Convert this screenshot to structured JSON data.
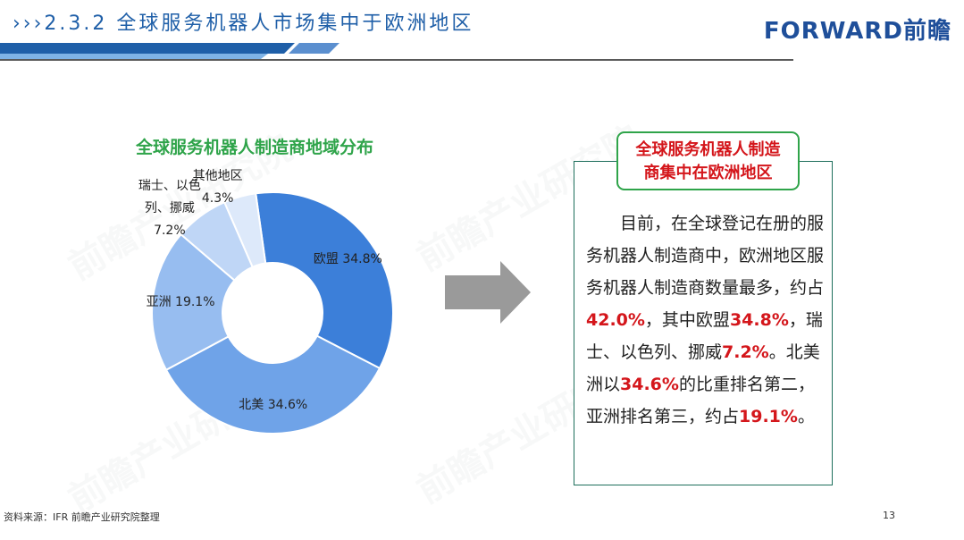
{
  "header": {
    "title": "›››2.3.2 全球服务机器人市场集中于欧洲地区",
    "logo": "FORWARD前瞻"
  },
  "watermark": "前瞻产业研究院",
  "colors": {
    "header_blue": "#1f5fa8",
    "chart_title_green": "#2fa44a",
    "highlight_red": "#d4161b",
    "arrow_gray": "#9a9a9a"
  },
  "chart_data": {
    "type": "pie",
    "donut": true,
    "title": "全球服务机器人制造商地域分布",
    "slices": [
      {
        "label_lines": [
          "欧盟 34.8%"
        ],
        "value": 34.8,
        "color": "#3c7fd9"
      },
      {
        "label_lines": [
          "北美 34.6%"
        ],
        "value": 34.6,
        "color": "#6fa3e8"
      },
      {
        "label_lines": [
          "亚洲 19.1%"
        ],
        "value": 19.1,
        "color": "#97bdf0"
      },
      {
        "label_lines": [
          "瑞士、以色",
          "列、挪威",
          "7.2%"
        ],
        "value": 7.2,
        "color": "#bfd6f6"
      },
      {
        "label_lines": [
          "其他地区",
          "4.3%"
        ],
        "value": 4.3,
        "color": "#dde9fa"
      }
    ]
  },
  "summary": {
    "badge_line1": "全球服务机器人制造",
    "badge_line2": "商集中在欧洲地区",
    "p1": "目前，在全球登记在册的服务机器人制造商中，欧洲地区服务机器人制造商数量最多，约占",
    "v1": "42.0%",
    "p2": "，其中欧盟",
    "v2": "34.8%",
    "p3": "，瑞士、以色列、挪威",
    "v3": "7.2%",
    "p4": "。北美洲以",
    "v4": "34.6%",
    "p5": "的比重排名第二，亚洲排名第三，约占",
    "v5": "19.1%",
    "p6": "。"
  },
  "footer": {
    "source": "资料来源：IFR 前瞻产业研究院整理",
    "page": "13"
  }
}
